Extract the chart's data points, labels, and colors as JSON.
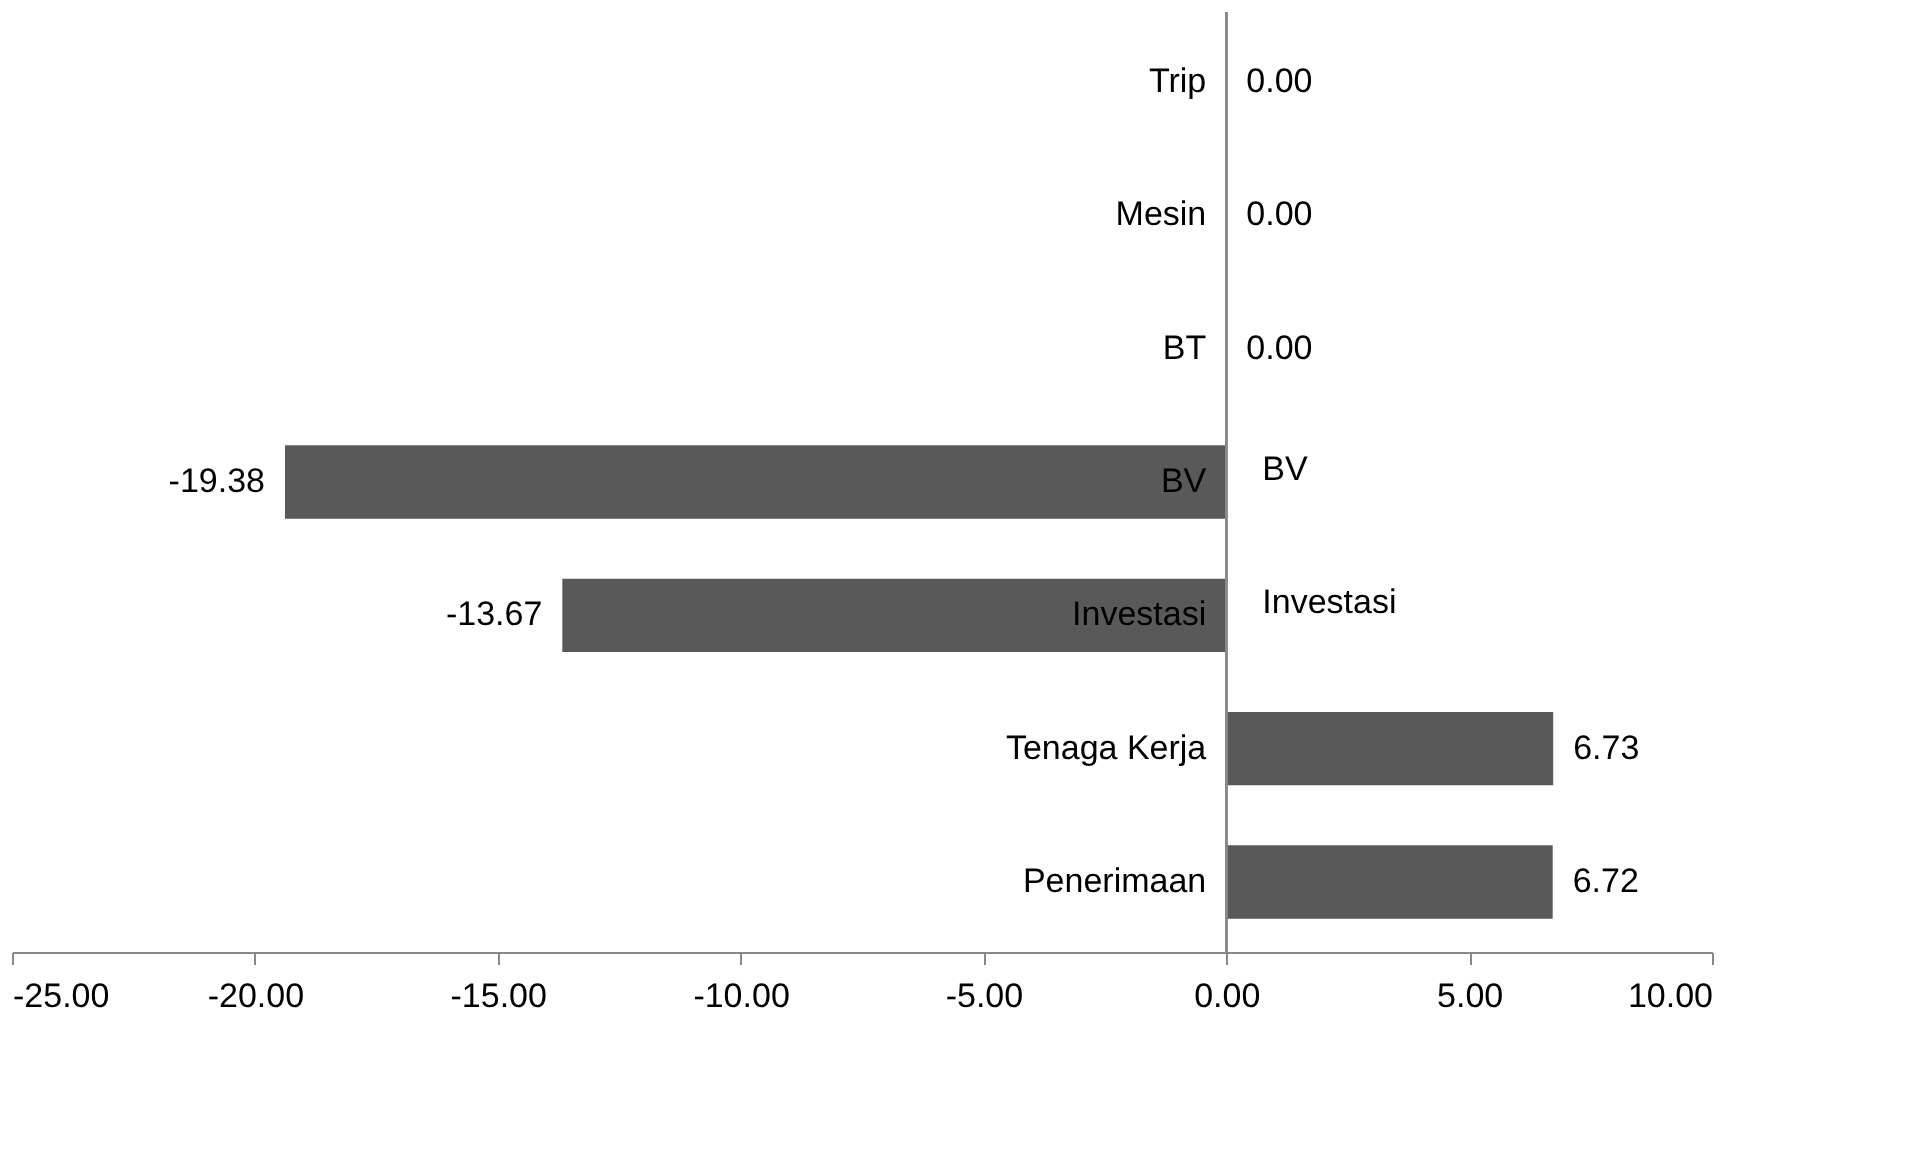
{
  "chart_data": {
    "type": "bar",
    "orientation": "horizontal",
    "categories": [
      "Trip",
      "Mesin",
      "BT",
      "BV",
      "Investasi",
      "Tenaga Kerja",
      "Penerimaan"
    ],
    "values": [
      0,
      0,
      0,
      -19.38,
      -13.67,
      6.73,
      6.72
    ],
    "value_labels": [
      "0.00",
      "0.00",
      "0.00",
      "-19.38",
      "-13.67",
      "6.73",
      "6.72"
    ],
    "color": "#595959",
    "xlim": [
      -25,
      10
    ],
    "xticks": [
      {
        "value": -25,
        "label": "-25.00"
      },
      {
        "value": -20,
        "label": "-20.00"
      },
      {
        "value": -15,
        "label": "-15.00"
      },
      {
        "value": -10,
        "label": "-10.00"
      },
      {
        "value": -5,
        "label": "-5.00"
      },
      {
        "value": 0,
        "label": "0.00"
      },
      {
        "value": 5,
        "label": "5.00"
      },
      {
        "value": 10,
        "label": "10.00"
      }
    ],
    "annotations": [
      {
        "text": "BV",
        "x": 0,
        "y": "BV"
      },
      {
        "text": "Investasi",
        "x": 0,
        "y": "Investasi"
      }
    ],
    "grid": false
  }
}
